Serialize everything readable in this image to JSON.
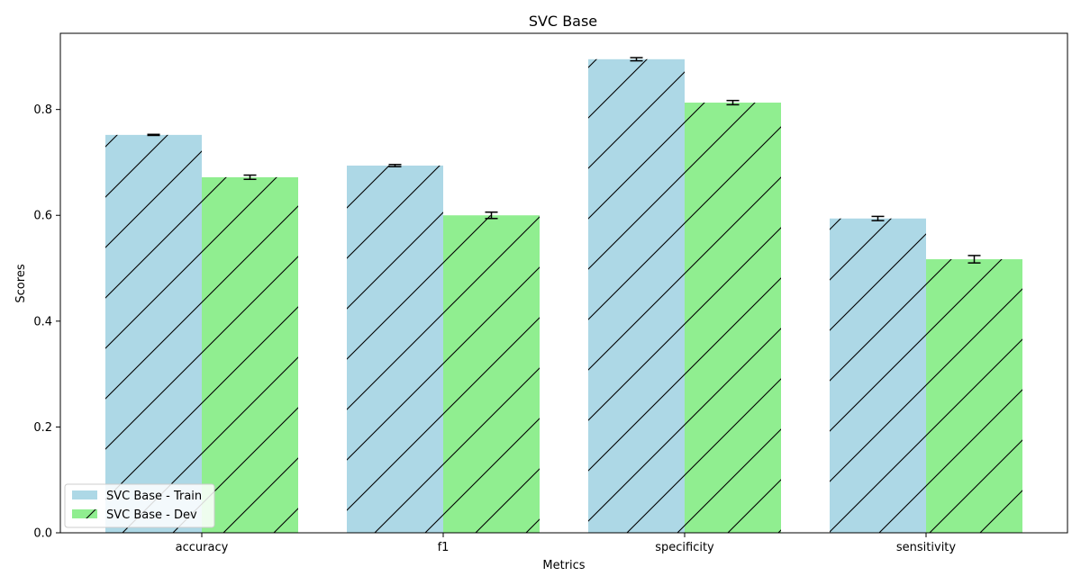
{
  "chart_data": {
    "type": "bar",
    "title": "SVC Base",
    "xlabel": "Metrics",
    "ylabel": "Scores",
    "categories": [
      "accuracy",
      "f1",
      "specificity",
      "sensitivity"
    ],
    "ylim": [
      0,
      0.944
    ],
    "yticks": [
      0.0,
      0.2,
      0.4,
      0.6,
      0.8
    ],
    "ytick_labels": [
      "0.0",
      "0.2",
      "0.4",
      "0.6",
      "0.8"
    ],
    "grid": false,
    "legend_position": "lower-left",
    "bar_hatch": "diagonal",
    "series": [
      {
        "name": "SVC Base - Train",
        "color": "#add8e6",
        "values": [
          0.752,
          0.694,
          0.895,
          0.594
        ],
        "errors": [
          0.001,
          0.002,
          0.003,
          0.004
        ]
      },
      {
        "name": "SVC Base - Dev",
        "color": "#90ee90",
        "values": [
          0.672,
          0.6,
          0.813,
          0.517
        ],
        "errors": [
          0.004,
          0.006,
          0.004,
          0.007
        ]
      }
    ]
  }
}
